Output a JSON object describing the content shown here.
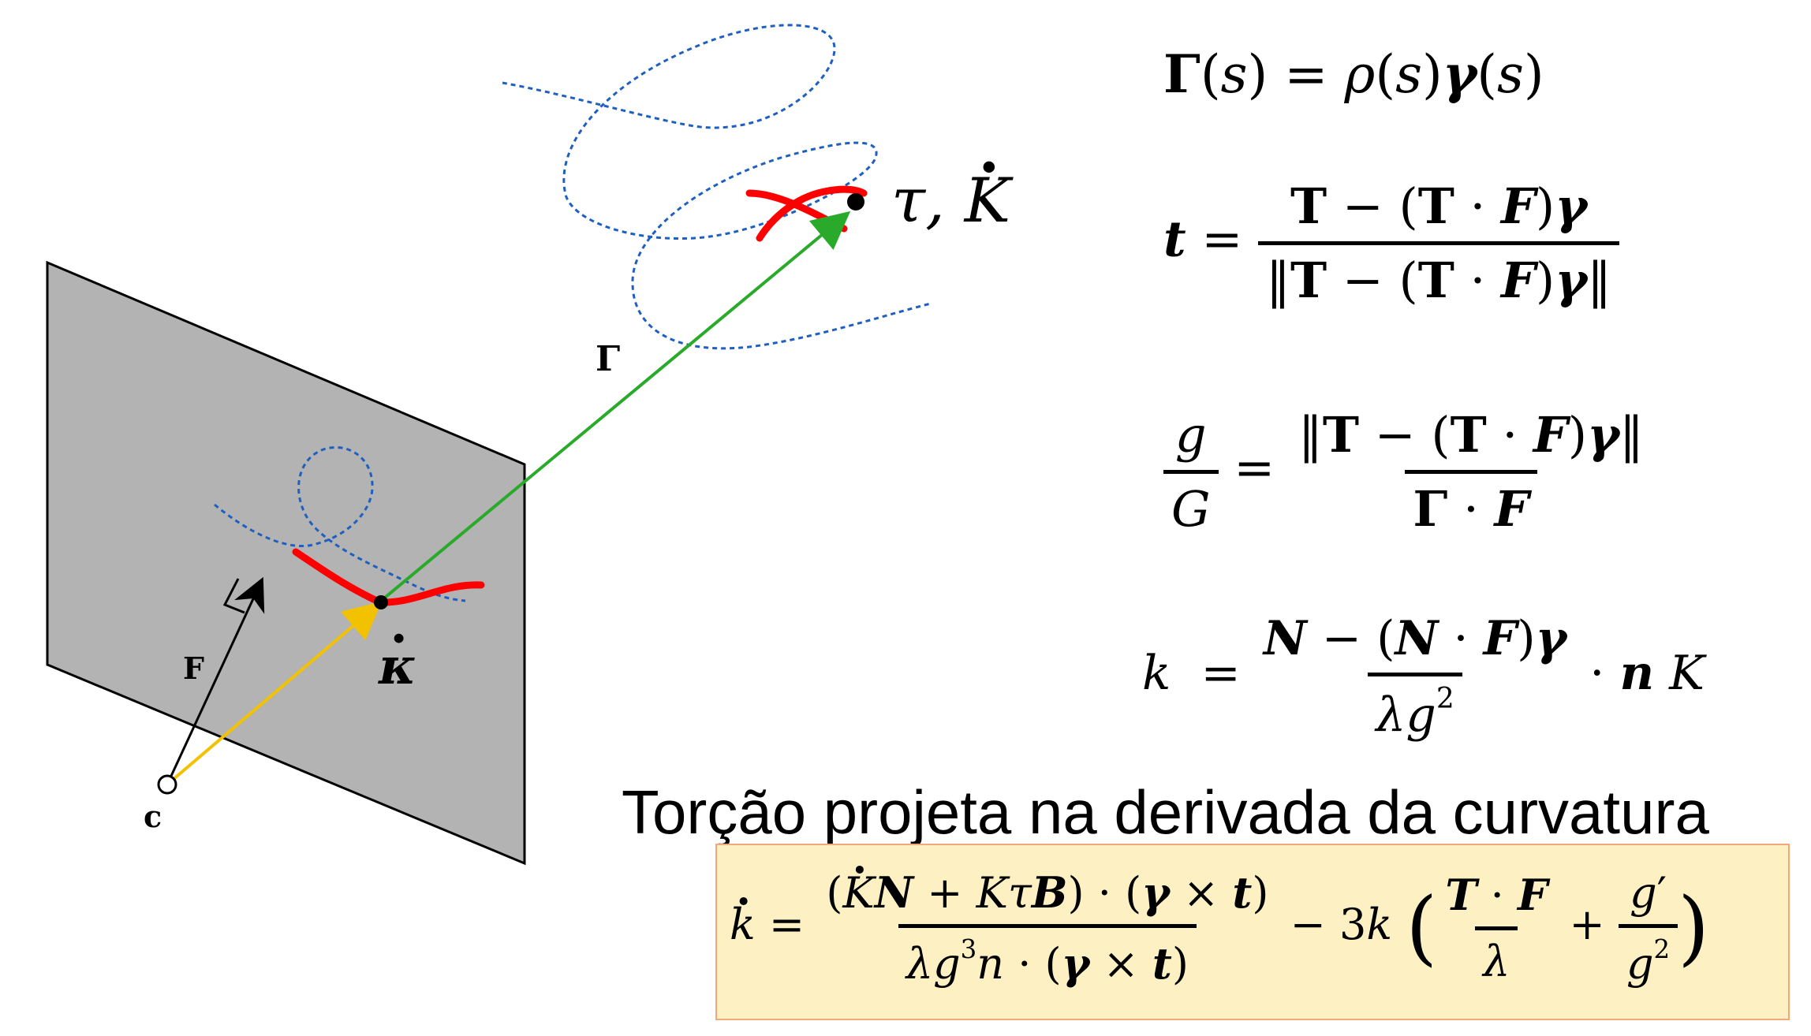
{
  "diagram": {
    "labels": {
      "tau_K": "τ, K",
      "Gamma": "Γ",
      "F": "F",
      "kappa_dot": "κ",
      "c": "c"
    },
    "colors": {
      "plane": "#b3b3b3",
      "curve": "#ff0000",
      "dotted_curve": "#1f5fbf",
      "ray_green": "#2aaa2a",
      "ray_yellow": "#f2c200"
    }
  },
  "equations": {
    "eq1": {
      "lhs": "Γ(s) = ρ(s)γ(s)"
    },
    "eq2": {
      "lhs": "t",
      "num": "T − (T · F)γ",
      "den": "‖T − (T · F)γ‖"
    },
    "eq3": {
      "lhs_num": "g",
      "lhs_den": "G",
      "num": "‖T − (T · F)γ‖",
      "den": "Γ · F"
    },
    "eq4": {
      "lhs": "k",
      "num": "N − (N · F)γ",
      "den": "λg²",
      "rhs": "· n K"
    }
  },
  "caption": "Torção projeta na derivada da curvatura",
  "highlighted_equation": {
    "lhs": "k",
    "num": "(K N + Kτ B) · (γ × t)",
    "den": "λg³n · (γ × t)",
    "mid": "− 3k",
    "inner_num1": "T · F",
    "inner_den1": "λ",
    "inner_num2": "g′",
    "inner_den2": "g²"
  }
}
